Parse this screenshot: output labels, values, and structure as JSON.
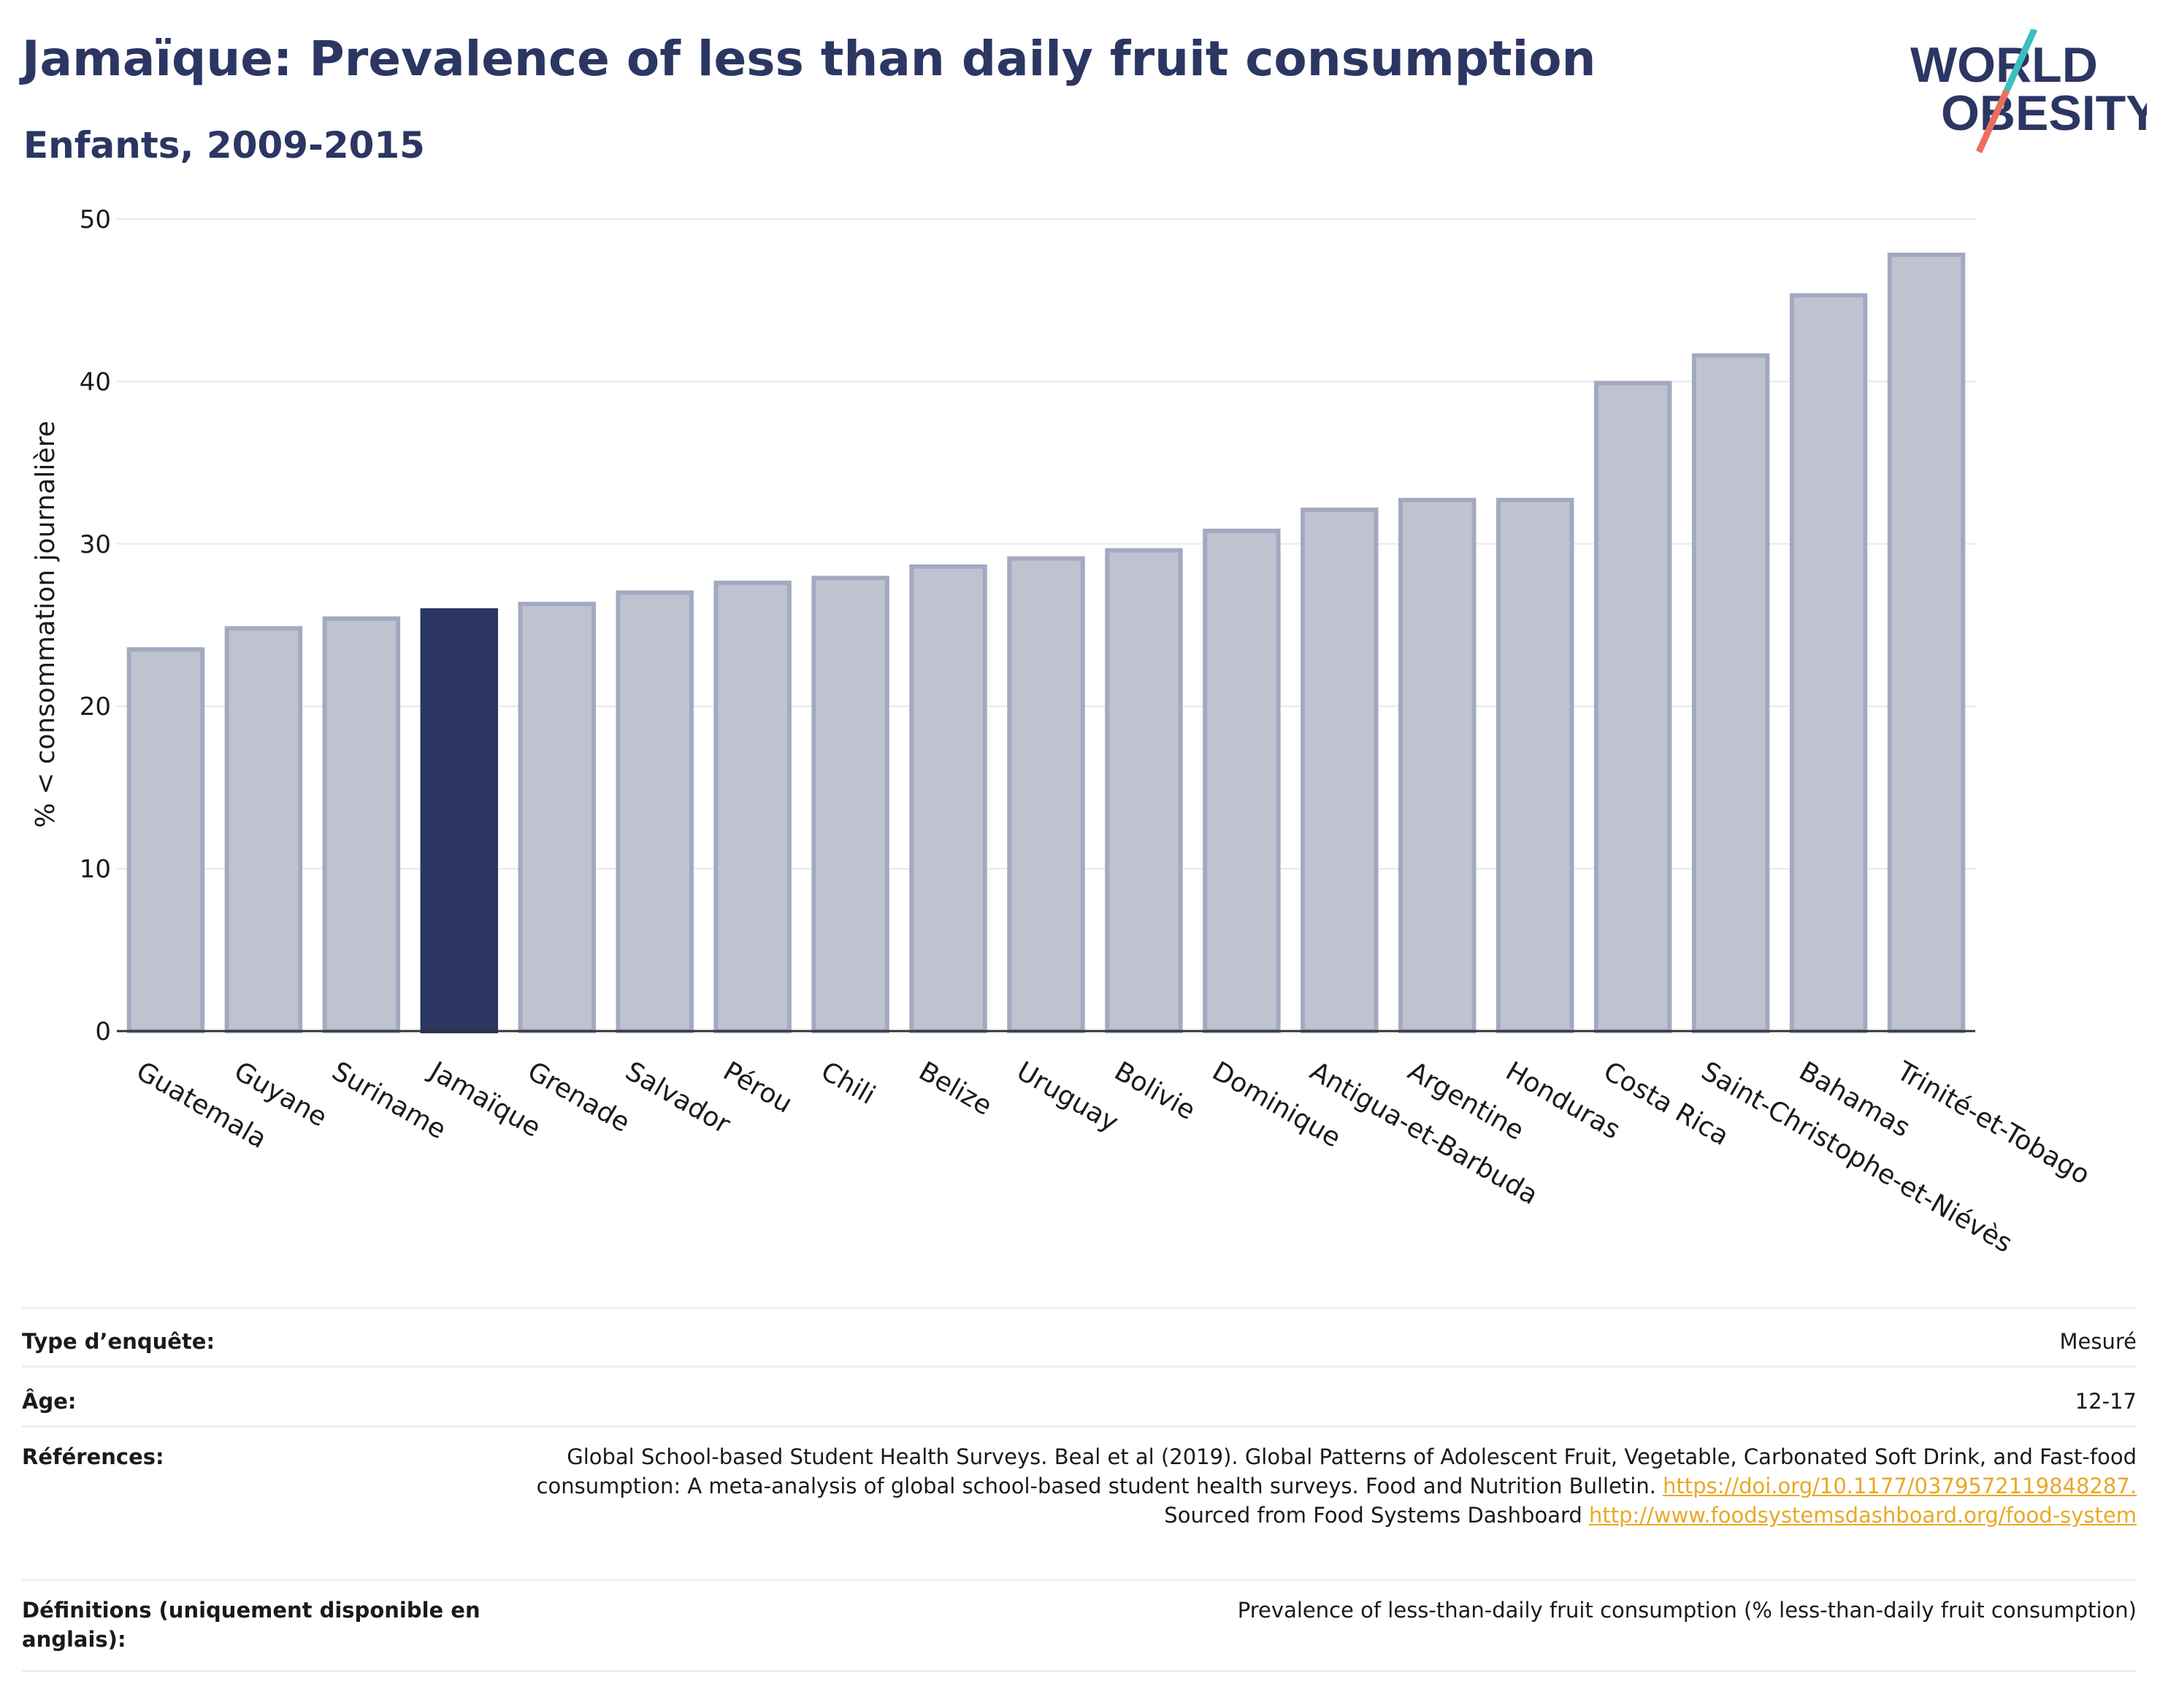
{
  "header": {
    "title": "Jamaïque: Prevalence of less than daily fruit consumption",
    "subtitle": "Enfants, 2009-2015"
  },
  "logo": {
    "line1": "WORLD",
    "line2": "OBESITY"
  },
  "colors": {
    "highlight": "#2b3663",
    "bar_fill": "#bfc3d0",
    "bar_stroke": "#a3a9c0",
    "link": "#e9a825",
    "logo_teal": "#3bbfbf",
    "logo_coral": "#e9705f"
  },
  "chart_data": {
    "type": "bar",
    "ylabel": "% < consommation journalière",
    "xlabel": "",
    "ylim": [
      0,
      50
    ],
    "yticks": [
      0,
      10,
      20,
      30,
      40,
      50
    ],
    "grid": true,
    "highlight": "Jamaïque",
    "categories": [
      "Guatemala",
      "Guyane",
      "Suriname",
      "Jamaïque",
      "Grenade",
      "Salvador",
      "Pérou",
      "Chili",
      "Belize",
      "Uruguay",
      "Bolivie",
      "Dominique",
      "Antigua-et-Barbuda",
      "Argentine",
      "Honduras",
      "Costa Rica",
      "Saint-Christophe-et-Niévès",
      "Bahamas",
      "Trinité-et-Tobago"
    ],
    "values": [
      23.5,
      24.8,
      25.4,
      25.9,
      26.3,
      27.0,
      27.6,
      27.9,
      28.6,
      29.1,
      29.6,
      30.8,
      32.1,
      32.7,
      32.7,
      39.9,
      41.6,
      45.3,
      47.8
    ]
  },
  "info": {
    "survey_type_label": "Type d’enquête:",
    "survey_type_value": "Mesuré",
    "age_label": "Âge:",
    "age_value": "12-17",
    "references_label": "Références:",
    "references_text": "Global School-based Student Health Surveys. Beal et al (2019). Global Patterns of Adolescent Fruit, Vegetable, Carbonated Soft Drink, and Fast-food consumption: A meta-analysis of global school-based student health surveys. Food and Nutrition Bulletin.",
    "references_link1": "https://doi.org/10.1177/0379572119848287.",
    "references_mid": "Sourced from Food Systems Dashboard",
    "references_link2": "http://www.foodsystemsdashboard.org/food-system",
    "definitions_label": "Définitions (uniquement disponible en anglais):",
    "definitions_value": "Prevalence of less-than-daily fruit consumption (% less-than-daily fruit consumption)"
  }
}
